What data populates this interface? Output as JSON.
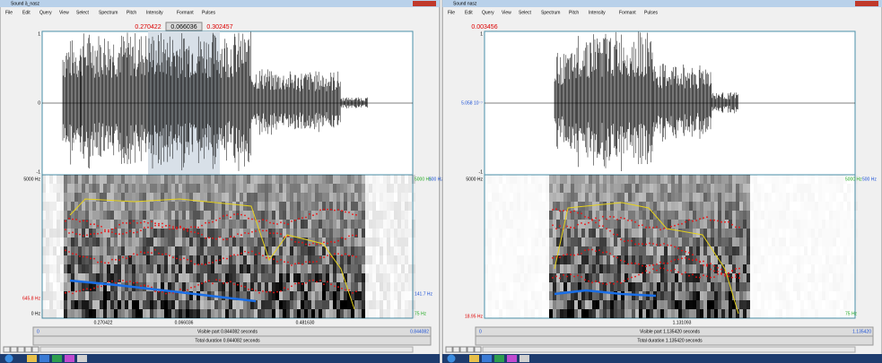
{
  "windows": [
    {
      "title": "Sound ä_nasz",
      "menu": [
        "File",
        "Edit",
        "Query",
        "View",
        "Select",
        "Spectrum",
        "Pitch",
        "Intensity",
        "Formant",
        "Pulses"
      ],
      "selection_labels": [
        "0.270422",
        "0.066036",
        "0.302457"
      ],
      "wave_axis": [
        "1",
        "0",
        "-1"
      ],
      "spec_left_labels": [
        "5000 Hz",
        "645.8 Hz",
        "0 Hz"
      ],
      "spec_right_labels": [
        "5000 Hz",
        "500 Hz",
        "141.7 Hz",
        "75 Hz"
      ],
      "time_labels": [
        "0.270422",
        "0.066036",
        "0.481630"
      ],
      "visible_start": "0",
      "visible_text": "Visible part 0.844082 seconds",
      "visible_end": "0.844082",
      "total_text": "Total duration 0.844082 seconds"
    },
    {
      "title": "Sound nasz",
      "menu": [
        "File",
        "Edit",
        "Query",
        "View",
        "Select",
        "Spectrum",
        "Pitch",
        "Intensity",
        "Formant",
        "Pulses"
      ],
      "selection_labels": [
        "0.003456"
      ],
      "wave_axis": [
        "1",
        "5.058 10⁻⁷",
        "-1"
      ],
      "spec_left_labels": [
        "5000 Hz",
        "18.95 Hz"
      ],
      "spec_right_labels": [
        "5000 Hz",
        "500 Hz",
        "75 Hz"
      ],
      "time_labels": [
        "1.131093"
      ],
      "visible_start": "0",
      "visible_text": "Visible part 1.135420 seconds",
      "visible_end": "1.135420",
      "total_text": "Total duration 1.135420 seconds"
    }
  ]
}
